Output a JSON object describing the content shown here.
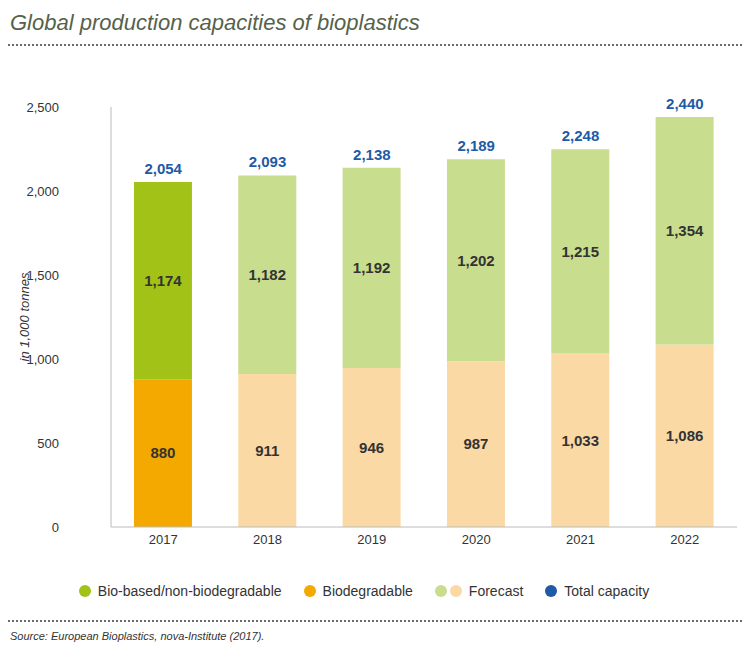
{
  "chart_data": {
    "type": "bar",
    "title": "Global production capacities of bioplastics",
    "y_label": "in 1,000 tonnes",
    "source": "Source: European Bioplastics, nova-Institute (2017).",
    "categories": [
      "2017",
      "2018",
      "2019",
      "2020",
      "2021",
      "2022"
    ],
    "stacked": true,
    "data_labels": true,
    "grid": false,
    "legend": "bottom",
    "series": [
      {
        "name": "Bio-based/non-biodegradable",
        "color": "#a3c218",
        "colors": [
          "#a3c218",
          "#c9dd8e",
          "#c9dd8e",
          "#c9dd8e",
          "#c9dd8e",
          "#c9dd8e"
        ],
        "values": [
          1174,
          1182,
          1192,
          1202,
          1215,
          1354
        ],
        "value_labels": [
          "1,174",
          "1,182",
          "1,192",
          "1,202",
          "1,215",
          "1,354"
        ]
      },
      {
        "name": "Biodegradable",
        "color": "#f4a900",
        "colors": [
          "#f4a900",
          "#fad9a5",
          "#fad9a5",
          "#fad9a5",
          "#fad9a5",
          "#fad9a5"
        ],
        "values": [
          880,
          911,
          946,
          987,
          1033,
          1086
        ],
        "value_labels": [
          "880",
          "911",
          "946",
          "987",
          "1,033",
          "1,086"
        ]
      }
    ],
    "forecast": {
      "name": "Forecast",
      "colors": [
        "#c9dd8e",
        "#fad9a5"
      ]
    },
    "totals": {
      "name": "Total capacity",
      "color": "#1f5aa6",
      "values": [
        2054,
        2093,
        2138,
        2189,
        2248,
        2440
      ],
      "value_labels": [
        "2,054",
        "2,093",
        "2,138",
        "2,189",
        "2,248",
        "2,440"
      ]
    },
    "ylim": [
      0,
      2500
    ],
    "yticks": [
      0,
      500,
      {
        "value": 1000,
        "label": "1,000"
      },
      {
        "value": 1500,
        "label": "1,500"
      },
      {
        "value": 2000,
        "label": "2,000"
      },
      {
        "value": 2500,
        "label": "2,500"
      }
    ]
  }
}
